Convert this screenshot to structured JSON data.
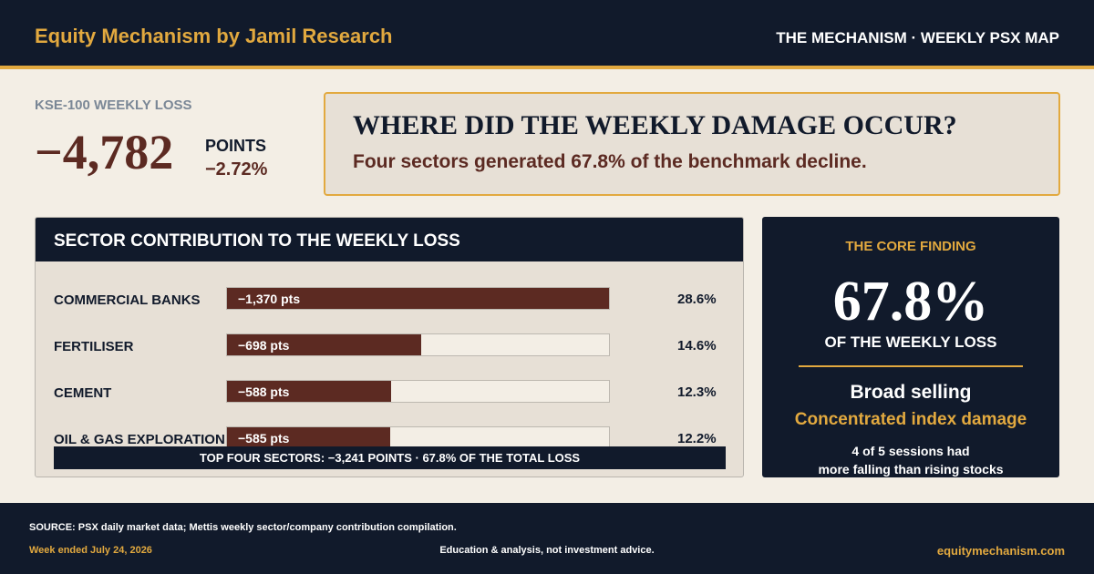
{
  "header": {
    "brand": "Equity Mechanism by Jamil Research",
    "series": "THE MECHANISM · WEEKLY PSX MAP"
  },
  "kse": {
    "label": "KSE-100 WEEKLY LOSS",
    "value": "−4,782",
    "unit": "POINTS",
    "pct": "−2.72%"
  },
  "question": {
    "title": "WHERE DID THE WEEKLY DAMAGE OCCUR?",
    "subtitle": "Four sectors generated 67.8% of the benchmark decline."
  },
  "chart_data": {
    "type": "bar",
    "orientation": "horizontal",
    "title": "SECTOR CONTRIBUTION TO THE WEEKLY LOSS",
    "categories": [
      "COMMERCIAL BANKS",
      "FERTILISER",
      "CEMENT",
      "OIL & GAS EXPLORATION"
    ],
    "values": [
      -1370,
      -698,
      -588,
      -585
    ],
    "value_labels": [
      "−1,370 pts",
      "−698 pts",
      "−588 pts",
      "−585 pts"
    ],
    "shares": [
      "28.6%",
      "14.6%",
      "12.3%",
      "12.2%"
    ],
    "share_values": [
      28.6,
      14.6,
      12.3,
      12.2
    ],
    "scale_max_abs": 1370,
    "summary": "TOP FOUR SECTORS: −3,241 POINTS · 67.8% OF THE TOTAL LOSS",
    "bar_color": "#5c2a22"
  },
  "finding": {
    "label": "THE CORE FINDING",
    "value": "67.8%",
    "caption": "OF THE WEEKLY LOSS",
    "line1": "Broad selling",
    "line2": "Concentrated index damage",
    "note1": "4 of 5 sessions had",
    "note2": "more falling than rising stocks"
  },
  "footer": {
    "source": "SOURCE: PSX daily market data; Mettis weekly sector/company contribution compilation.",
    "week": "Week ended July 24, 2026",
    "disclaimer": "Education & analysis, not investment advice.",
    "site": "equitymechanism.com"
  },
  "colors": {
    "navy": "#111a2b",
    "gold": "#e2a93f",
    "maroon": "#5c2a22",
    "cream": "#f3eee5",
    "beige": "#e7e0d6"
  }
}
